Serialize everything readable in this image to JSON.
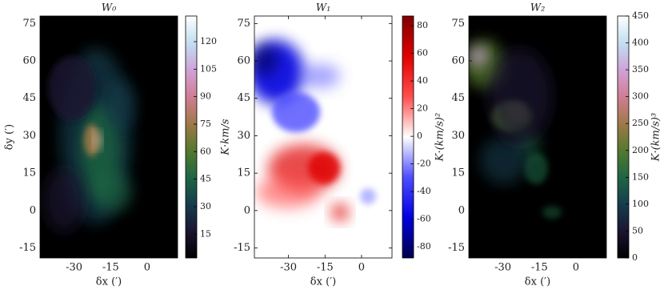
{
  "chart_data": [
    {
      "type": "image",
      "title": "W₀",
      "xlabel": "δx (′)",
      "ylabel": "δy (′)",
      "xlim": [
        -44,
        12.5
      ],
      "xticks": [
        -30,
        -15,
        0
      ],
      "ylim": [
        -19,
        78
      ],
      "yticks": [
        -15,
        0,
        15,
        30,
        45,
        60,
        75
      ],
      "colorbar": {
        "label": "K·km/s",
        "lim": [
          2,
          134
        ],
        "ticks": [
          15,
          30,
          45,
          60,
          75,
          90,
          105,
          120
        ],
        "colors": [
          "#000000",
          "#1a1530",
          "#163d4e",
          "#1f6642",
          "#54792f",
          "#a07949",
          "#d07e93",
          "#cfa2d9",
          "#c2dff0",
          "#ffffff"
        ]
      }
    },
    {
      "type": "image",
      "title": "W₁",
      "xlabel": "δx (′)",
      "xlim": [
        -44,
        12.5
      ],
      "xticks": [
        -30,
        -15,
        0
      ],
      "ylim": [
        -19,
        78
      ],
      "yticks": [
        -15,
        0,
        15,
        30,
        45,
        60,
        75
      ],
      "colorbar": {
        "label": "K·(km/s)²",
        "lim": [
          -88,
          87
        ],
        "ticks": [
          -80,
          -60,
          -40,
          -20,
          0,
          20,
          40,
          60,
          80
        ],
        "colors": [
          "#00004c",
          "#0000e0",
          "#4d4dff",
          "#ffffff",
          "#ff4d4d",
          "#e00000",
          "#800000"
        ]
      }
    },
    {
      "type": "image",
      "title": "W₂",
      "xlabel": "δx (′)",
      "xlim": [
        -44,
        12.5
      ],
      "xticks": [
        -30,
        -15,
        0
      ],
      "ylim": [
        -19,
        78
      ],
      "yticks": [
        -15,
        0,
        15,
        30,
        45,
        60,
        75
      ],
      "colorbar": {
        "label": "K·(km/s)³",
        "lim": [
          0,
          450
        ],
        "ticks": [
          0,
          50,
          100,
          150,
          200,
          250,
          300,
          350,
          400,
          450
        ],
        "colors": [
          "#000000",
          "#1a1530",
          "#163d4e",
          "#1f6642",
          "#54792f",
          "#a07949",
          "#d07e93",
          "#cfa2d9",
          "#c2dff0",
          "#ffffff"
        ]
      }
    }
  ]
}
